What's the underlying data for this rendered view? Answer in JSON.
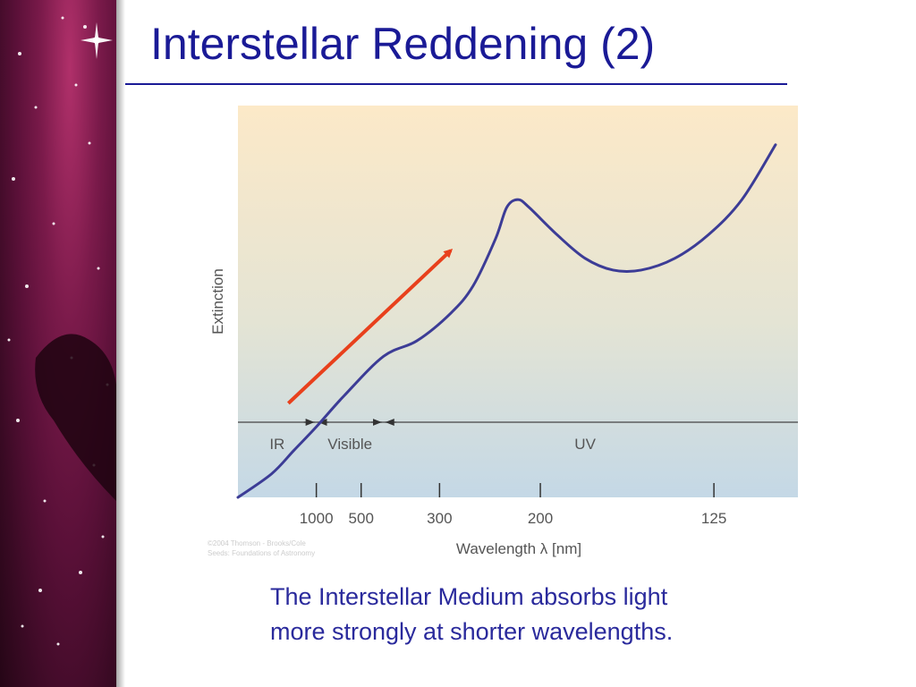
{
  "slide": {
    "title": "Interstellar Reddening (2)",
    "caption_lines": [
      "The Interstellar Medium absorbs light",
      "more strongly at shorter wavelengths."
    ],
    "colors": {
      "title": "#1a1a96",
      "caption": "#2a2a9c",
      "curve": "#3c3c96",
      "arrow": "#e8401c",
      "sidebar": "#7a1a4a"
    }
  },
  "chart_data": {
    "type": "line",
    "xlabel": "Wavelength λ [nm]",
    "ylabel": "Extinction",
    "x_ticks": [
      {
        "label": "1000",
        "x": 0.14
      },
      {
        "label": "500",
        "x": 0.22
      },
      {
        "label": "300",
        "x": 0.36
      },
      {
        "label": "200",
        "x": 0.54
      },
      {
        "label": "125",
        "x": 0.85
      }
    ],
    "regions": [
      {
        "label": "IR",
        "x_start": 0.0,
        "x_end": 0.14
      },
      {
        "label": "Visible",
        "x_start": 0.14,
        "x_end": 0.26
      },
      {
        "label": "UV",
        "x_start": 0.26,
        "x_end": 1.0
      }
    ],
    "series": [
      {
        "points": [
          {
            "x": 0.0,
            "y": 0.0
          },
          {
            "x": 0.06,
            "y": 0.06
          },
          {
            "x": 0.1,
            "y": 0.12
          },
          {
            "x": 0.14,
            "y": 0.18
          },
          {
            "x": 0.19,
            "y": 0.26
          },
          {
            "x": 0.26,
            "y": 0.36
          },
          {
            "x": 0.32,
            "y": 0.4
          },
          {
            "x": 0.38,
            "y": 0.47
          },
          {
            "x": 0.42,
            "y": 0.54
          },
          {
            "x": 0.46,
            "y": 0.66
          },
          {
            "x": 0.48,
            "y": 0.74
          },
          {
            "x": 0.5,
            "y": 0.76
          },
          {
            "x": 0.52,
            "y": 0.74
          },
          {
            "x": 0.57,
            "y": 0.67
          },
          {
            "x": 0.62,
            "y": 0.61
          },
          {
            "x": 0.67,
            "y": 0.58
          },
          {
            "x": 0.72,
            "y": 0.58
          },
          {
            "x": 0.78,
            "y": 0.61
          },
          {
            "x": 0.84,
            "y": 0.67
          },
          {
            "x": 0.9,
            "y": 0.76
          },
          {
            "x": 0.96,
            "y": 0.9
          }
        ]
      }
    ],
    "annotation_arrow": {
      "from": {
        "x": 0.09,
        "y": 0.24
      },
      "to": {
        "x": 0.38,
        "y": 0.63
      }
    },
    "credit_lines": [
      "©2004 Thomson - Brooks/Cole",
      "Seeds: Foundations of Astronomy"
    ]
  }
}
